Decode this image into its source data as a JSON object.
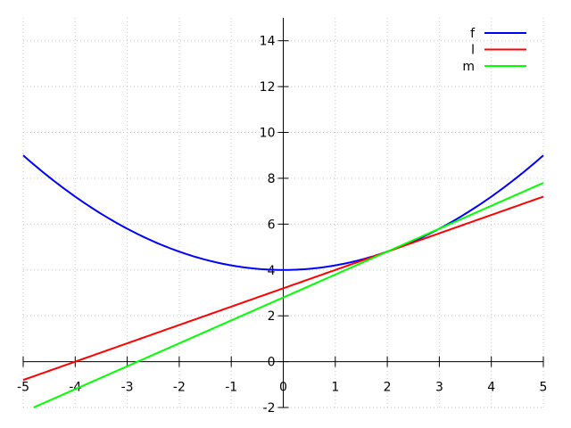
{
  "chart_data": {
    "type": "line",
    "title": "",
    "xlabel": "",
    "ylabel": "",
    "xlim": [
      -5,
      5
    ],
    "ylim": [
      -2,
      15
    ],
    "xticks": [
      -5,
      -4,
      -3,
      -2,
      -1,
      0,
      1,
      2,
      3,
      4,
      5
    ],
    "yticks": [
      -2,
      0,
      2,
      4,
      6,
      8,
      10,
      12,
      14
    ],
    "grid": true,
    "axes_at_zero": true,
    "legend_position": "top-right",
    "series": [
      {
        "name": "f",
        "color": "#0000ff",
        "expression": "0.2*x^2+4",
        "points": [
          [
            -5,
            9
          ],
          [
            -4,
            7.2
          ],
          [
            -3,
            5.8
          ],
          [
            -2,
            4.8
          ],
          [
            -1,
            4.2
          ],
          [
            0,
            4
          ],
          [
            1,
            4.2
          ],
          [
            2,
            4.8
          ],
          [
            3,
            5.8
          ],
          [
            4,
            7.2
          ],
          [
            5,
            9
          ]
        ]
      },
      {
        "name": "l",
        "color": "#ff0000",
        "expression": "0.8*x+3.2",
        "points": [
          [
            -5,
            -0.8
          ],
          [
            -4,
            0
          ],
          [
            0,
            3.2
          ],
          [
            2,
            4.8
          ],
          [
            5,
            7.2
          ]
        ]
      },
      {
        "name": "m",
        "color": "#00ff00",
        "expression": "x+2.8",
        "points": [
          [
            -4.8,
            -2
          ],
          [
            -2.8,
            0
          ],
          [
            0,
            2.8
          ],
          [
            2,
            4.8
          ],
          [
            3,
            5.8
          ],
          [
            5,
            7.8
          ]
        ]
      }
    ]
  }
}
